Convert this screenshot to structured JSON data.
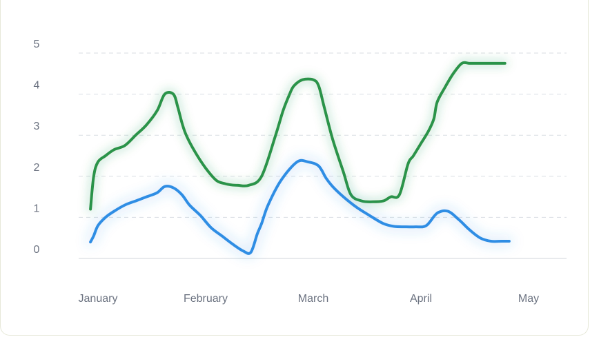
{
  "chart_data": {
    "type": "line",
    "title": "",
    "xlabel": "",
    "ylabel": "",
    "x_tick_labels": [
      "January",
      "February",
      "March",
      "April",
      "May"
    ],
    "y_ticks": [
      0,
      1,
      2,
      3,
      4,
      5
    ],
    "ylim": [
      0,
      5
    ],
    "xlim": [
      0,
      4
    ],
    "grid": true,
    "legend": "none",
    "series": [
      {
        "color": "#2a9349",
        "x": [
          -0.07,
          -0.04,
          0.0,
          0.07,
          0.15,
          0.25,
          0.35,
          0.45,
          0.55,
          0.62,
          0.7,
          0.74,
          0.78,
          0.82,
          0.9,
          1.0,
          1.1,
          1.18,
          1.24,
          1.3,
          1.4,
          1.52,
          1.65,
          1.72,
          1.78,
          1.82,
          1.9,
          2.0,
          2.05,
          2.1,
          2.18,
          2.28,
          2.35,
          2.45,
          2.55,
          2.65,
          2.72,
          2.8,
          2.88,
          2.93,
          3.0,
          3.07,
          3.12,
          3.15,
          3.22,
          3.3,
          3.38,
          3.45,
          3.52,
          3.6,
          3.7,
          3.78
        ],
        "values": [
          1.2,
          2.0,
          2.35,
          2.5,
          2.65,
          2.75,
          3.0,
          3.25,
          3.6,
          4.0,
          4.0,
          3.7,
          3.3,
          3.0,
          2.6,
          2.2,
          1.9,
          1.82,
          1.79,
          1.78,
          1.78,
          2.0,
          3.0,
          3.6,
          4.0,
          4.2,
          4.35,
          4.35,
          4.2,
          3.7,
          2.9,
          2.1,
          1.55,
          1.4,
          1.38,
          1.4,
          1.5,
          1.55,
          2.3,
          2.5,
          2.8,
          3.1,
          3.4,
          3.8,
          4.15,
          4.5,
          4.75,
          4.75,
          4.75,
          4.75,
          4.75,
          4.75
        ]
      },
      {
        "color": "#2f8de4",
        "x": [
          -0.07,
          -0.04,
          0.0,
          0.07,
          0.15,
          0.25,
          0.35,
          0.45,
          0.55,
          0.62,
          0.7,
          0.78,
          0.85,
          0.95,
          1.05,
          1.15,
          1.25,
          1.35,
          1.42,
          1.48,
          1.52,
          1.58,
          1.7,
          1.85,
          1.95,
          2.05,
          2.12,
          2.18,
          2.28,
          2.4,
          2.52,
          2.65,
          2.75,
          2.85,
          2.95,
          3.05,
          3.15,
          3.25,
          3.35,
          3.45,
          3.55,
          3.65,
          3.75,
          3.82
        ],
        "values": [
          0.4,
          0.55,
          0.8,
          1.0,
          1.15,
          1.3,
          1.4,
          1.5,
          1.6,
          1.75,
          1.72,
          1.55,
          1.3,
          1.05,
          0.75,
          0.55,
          0.35,
          0.18,
          0.15,
          0.6,
          0.85,
          1.3,
          1.9,
          2.35,
          2.35,
          2.25,
          1.95,
          1.75,
          1.5,
          1.25,
          1.05,
          0.85,
          0.78,
          0.77,
          0.77,
          0.8,
          1.1,
          1.15,
          0.95,
          0.7,
          0.5,
          0.42,
          0.42,
          0.42
        ]
      }
    ]
  }
}
